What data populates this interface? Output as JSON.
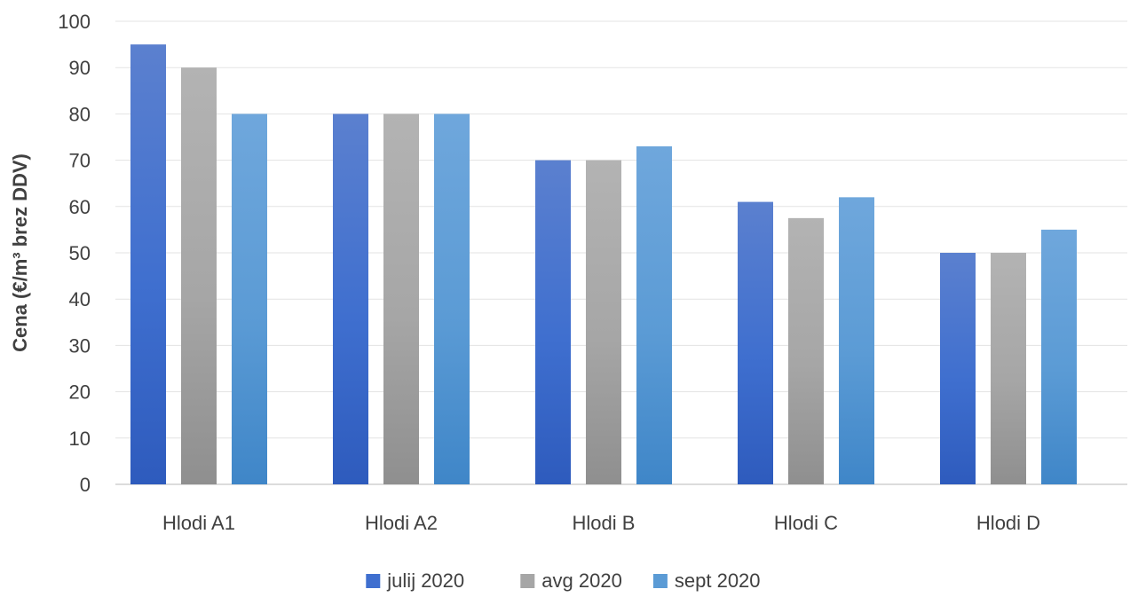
{
  "chart_data": {
    "type": "bar",
    "title": "",
    "xlabel": "",
    "ylabel": "Cena (€/m³ brez DDV)",
    "ylim": [
      0,
      100
    ],
    "yticks": [
      0,
      10,
      20,
      30,
      40,
      50,
      60,
      70,
      80,
      90,
      100
    ],
    "grid": true,
    "legend_position": "bottom",
    "categories": [
      "Hlodi A1",
      "Hlodi A2",
      "Hlodi B",
      "Hlodi C",
      "Hlodi D"
    ],
    "series": [
      {
        "name": "julij 2020",
        "values": [
          95,
          80,
          70,
          61,
          50
        ],
        "color": "#3f6fcf",
        "color_dark": "#2e5bbd",
        "color_light": "#5b80cf"
      },
      {
        "name": "avg 2020",
        "values": [
          90,
          80,
          70,
          57.5,
          50
        ],
        "color": "#a6a6a6",
        "color_dark": "#8f8f8f",
        "color_light": "#b3b3b3"
      },
      {
        "name": "sept 2020",
        "values": [
          80,
          80,
          73,
          62,
          55
        ],
        "color": "#5b9bd5",
        "color_dark": "#3f86c8",
        "color_light": "#6fa7dc"
      }
    ]
  }
}
